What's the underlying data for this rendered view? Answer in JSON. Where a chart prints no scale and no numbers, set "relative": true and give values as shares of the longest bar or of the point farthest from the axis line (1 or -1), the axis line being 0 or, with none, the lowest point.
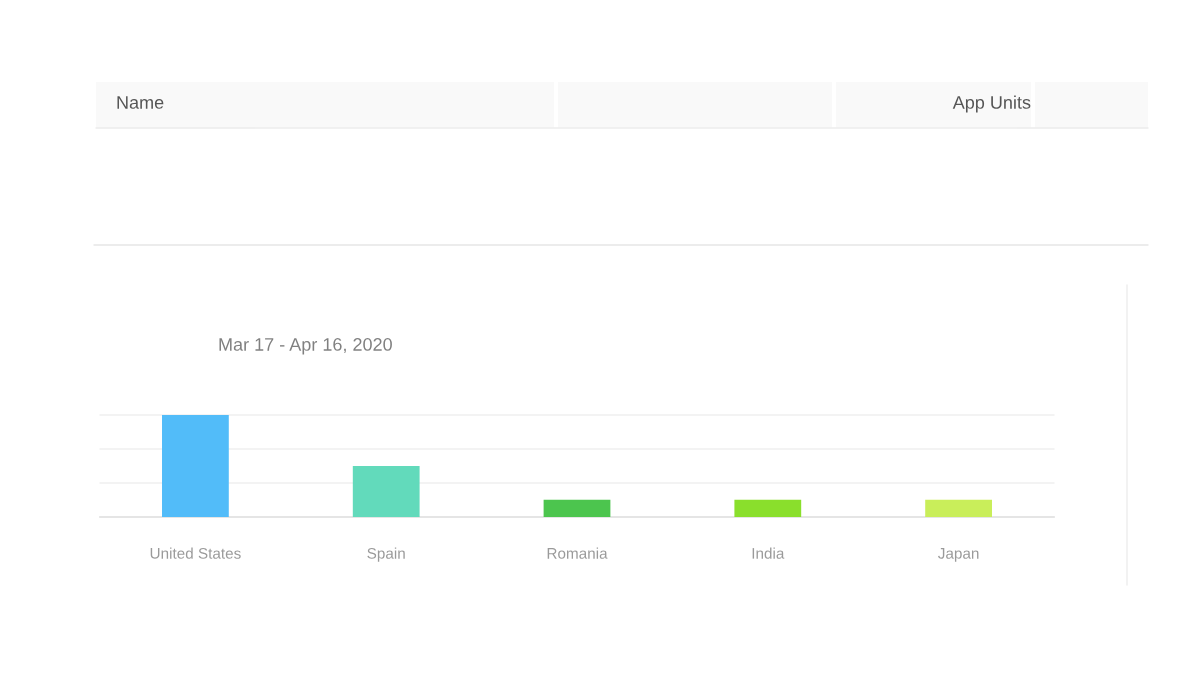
{
  "chart_data": {
    "type": "bar",
    "title": "Mar 17 - Apr 16, 2020",
    "categories": [
      "United States",
      "Spain",
      "Romania",
      "India",
      "Japan"
    ],
    "values": [
      1,
      0.5,
      0.17,
      0.17,
      0.17
    ],
    "colors": [
      "#52bcf9",
      "#62dabb",
      "#4cc54e",
      "#8adf2c",
      "#c9ee5a"
    ],
    "relative": true,
    "ref_lines": [
      {
        "axis": "y",
        "value": 0.333,
        "color": "#efefef"
      },
      {
        "axis": "y",
        "value": 0.667,
        "color": "#efefef"
      },
      {
        "axis": "y",
        "value": 1,
        "color": "#efefef"
      }
    ],
    "annotations": [
      "Name",
      "App Units"
    ]
  }
}
